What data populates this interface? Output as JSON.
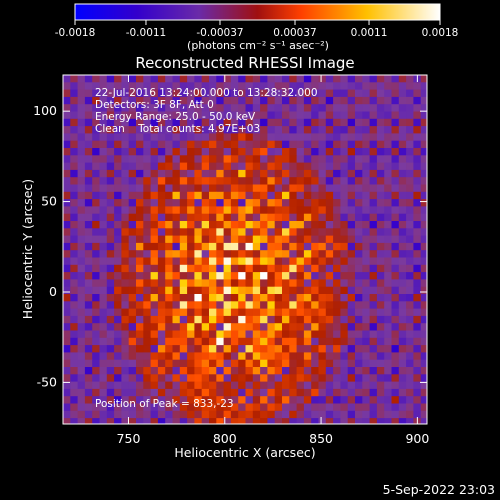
{
  "chart_data": {
    "type": "heatmap",
    "title": "Reconstructed RHESSI Image",
    "xlabel": "Heliocentric X (arcsec)",
    "ylabel": "Heliocentric Y (arcsec)",
    "xlim": [
      716,
      905
    ],
    "ylim": [
      -73,
      120
    ],
    "xticks": [
      "750",
      "800",
      "850",
      "900"
    ],
    "yticks": [
      "-50",
      "0",
      "50",
      "100"
    ],
    "colorbar": {
      "ticks": [
        "-0.0018",
        "-0.0011",
        "-0.00037",
        "0.00037",
        "0.0011",
        "0.0018"
      ],
      "range": [
        -0.0018,
        0.0018
      ],
      "unit_label": "(photons cm⁻² s⁻¹ asec⁻²)",
      "colors": [
        "#0000ff",
        "#3300cc",
        "#7a3aa0",
        "#b02000",
        "#ff5000",
        "#ffd000",
        "#ffffff"
      ]
    },
    "annotations": [
      "22-Jul-2016 13:24:00.000 to 13:28:32.000",
      "Detectors: 3F 8F, Att 0",
      "Energy Range: 25.0 - 50.0 keV",
      "Clean    Total counts: 4.97E+03"
    ],
    "peak_label": "Position of Peak = 833,-23"
  },
  "footer": {
    "timestamp": "5-Sep-2022 23:03"
  }
}
